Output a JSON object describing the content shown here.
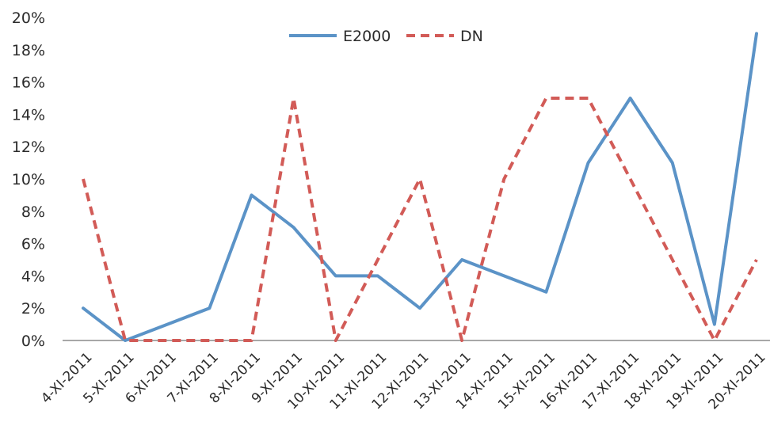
{
  "chart_data": {
    "type": "line",
    "categories": [
      "4-XI-2011",
      "5-XI-2011",
      "6-XI-2011",
      "7-XI-2011",
      "8-XI-2011",
      "9-XI-2011",
      "10-XI-2011",
      "11-XI-2011",
      "12-XI-2011",
      "13-XI-2011",
      "14-XI-2011",
      "15-XI-2011",
      "16-XI-2011",
      "17-XI-2011",
      "18-XI-2011",
      "19-XI-2011",
      "20-XI-2011"
    ],
    "series": [
      {
        "name": "E2000",
        "color": "#5b93c7",
        "style": "solid",
        "values": [
          2,
          0,
          1,
          2,
          9,
          7,
          4,
          4,
          2,
          5,
          4,
          3,
          11,
          15,
          11,
          1,
          19
        ]
      },
      {
        "name": "DN",
        "color": "#d25b57",
        "style": "dashed",
        "values": [
          10,
          0,
          0,
          0,
          0,
          15,
          0,
          5,
          10,
          0,
          10,
          15,
          15,
          10,
          5,
          0,
          5
        ]
      }
    ],
    "ylim": [
      0,
      20
    ],
    "yticks": [
      "0%",
      "2%",
      "4%",
      "6%",
      "8%",
      "10%",
      "12%",
      "14%",
      "16%",
      "18%",
      "20%"
    ],
    "ytick_values": [
      0,
      2,
      4,
      6,
      8,
      10,
      12,
      14,
      16,
      18,
      20
    ],
    "grid": false,
    "legend_position": "top-center",
    "axis_color": "#8c8c8c"
  }
}
